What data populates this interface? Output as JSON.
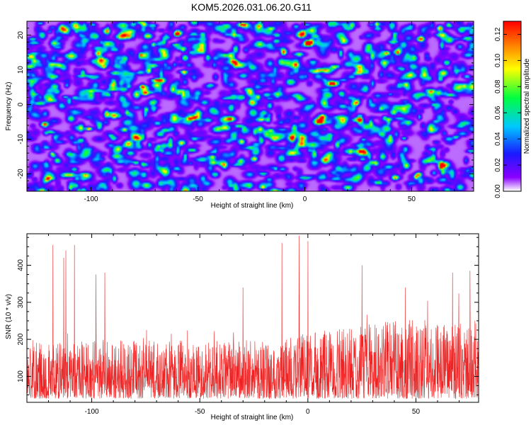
{
  "title": "KOM5.2026.031.06.20.G11",
  "colors": {
    "line": "#ee2222",
    "frame": "#000000",
    "colormap": [
      "#ffffff",
      "#8a00ff",
      "#1a1aff",
      "#00c8ff",
      "#00ff40",
      "#ffff00",
      "#ff8000",
      "#ff0000"
    ]
  },
  "chart_data": [
    {
      "type": "heatmap",
      "name": "spectrogram",
      "xlabel": "Height of straight line (km)",
      "ylabel": "Frequency (Hz)",
      "xlim": [
        -130,
        79
      ],
      "ylim": [
        -25,
        24
      ],
      "xticks": [
        -100,
        -50,
        0,
        50
      ],
      "xtick_labels": [
        "-100",
        "-50",
        "0",
        "50"
      ],
      "yticks": [
        -20,
        -10,
        0,
        10,
        20
      ],
      "ytick_labels": [
        "-20",
        "-10",
        "0",
        "10",
        "20"
      ],
      "colorbar": {
        "label": "Normalized spectral amplitude",
        "range": [
          0,
          0.13
        ],
        "ticks": [
          0.0,
          0.02,
          0.04,
          0.06,
          0.08,
          0.1,
          0.12
        ],
        "tick_labels": [
          "0.00",
          "0.02",
          "0.04",
          "0.06",
          "0.08",
          "0.10",
          "0.12"
        ]
      },
      "notable_peaks": [
        {
          "x": -122,
          "y": -5.5,
          "value": 0.12
        },
        {
          "x": -75,
          "y": 3.5,
          "value": 0.12
        },
        {
          "x": -60,
          "y": 20.5,
          "value": 0.11
        },
        {
          "x": -24,
          "y": -15.5,
          "value": 0.1
        },
        {
          "x": 38,
          "y": 15,
          "value": 0.1
        },
        {
          "x": 53,
          "y": -20,
          "value": 0.1
        },
        {
          "x": 1,
          "y": 18,
          "value": 0.09
        }
      ],
      "field_description": "dense speckle of small blobs, mostly 0.01-0.05 with scattered 0.05-0.12 peaks"
    },
    {
      "type": "line",
      "name": "snr",
      "xlabel": "Height of straight line (km)",
      "ylabel": "SNR (10 * v/v)",
      "xlim": [
        -130,
        79
      ],
      "ylim": [
        30,
        485
      ],
      "xticks": [
        -100,
        -50,
        0,
        50
      ],
      "xtick_labels": [
        "-100",
        "-50",
        "0",
        "50"
      ],
      "yticks": [
        100,
        200,
        300,
        400
      ],
      "ytick_labels": [
        "100",
        "200",
        "300",
        "400"
      ],
      "baseline": 125,
      "typical_spread": [
        40,
        250
      ],
      "spikes": [
        {
          "x": -118,
          "y": 455
        },
        {
          "x": -108,
          "y": 455
        },
        {
          "x": -112,
          "y": 440
        },
        {
          "x": -98,
          "y": 375
        },
        {
          "x": -94,
          "y": 380
        },
        {
          "x": -113,
          "y": 420
        },
        {
          "x": -12,
          "y": 460
        },
        {
          "x": -4,
          "y": 480
        },
        {
          "x": 0,
          "y": 465
        },
        {
          "x": 25,
          "y": 400
        },
        {
          "x": 67,
          "y": 380
        },
        {
          "x": 75,
          "y": 385
        },
        {
          "x": -30,
          "y": 340
        },
        {
          "x": 45,
          "y": 340
        }
      ],
      "points_count": 2100
    }
  ]
}
